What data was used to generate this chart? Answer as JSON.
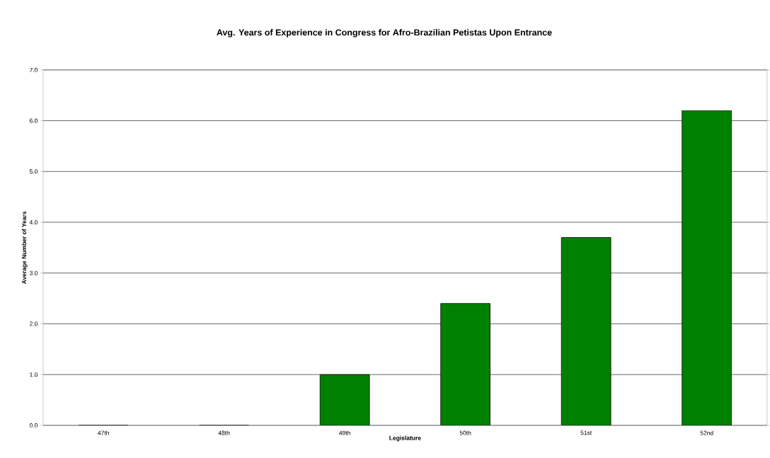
{
  "chart_data": {
    "type": "bar",
    "title": "Avg. Years of Experience in Congress for Afro-Brazilian Petistas Upon Entrance",
    "xlabel": "Legislature",
    "ylabel": "Average Number of Years",
    "categories": [
      "47th",
      "48th",
      "49th",
      "50th",
      "51st",
      "52nd"
    ],
    "values": [
      0,
      0,
      1.0,
      2.4,
      3.7,
      6.2
    ],
    "color": "#008000",
    "ylim": [
      0,
      7
    ],
    "yticks": [
      {
        "value": 0,
        "label": "0.0"
      },
      {
        "value": 1,
        "label": "1.0"
      },
      {
        "value": 2,
        "label": "2.0"
      },
      {
        "value": 3,
        "label": "3.0"
      },
      {
        "value": 4,
        "label": "4.0"
      },
      {
        "value": 5,
        "label": "5.0"
      },
      {
        "value": 6,
        "label": "6.0"
      },
      {
        "value": 7,
        "label": "7.0"
      }
    ],
    "grid": "y"
  }
}
